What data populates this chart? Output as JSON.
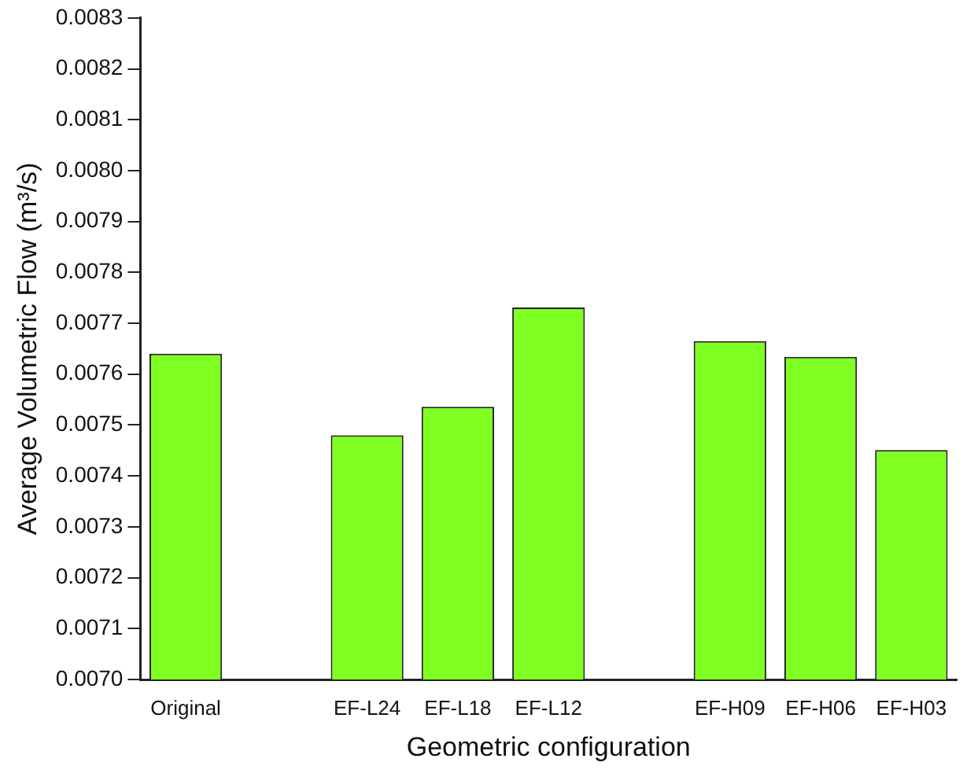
{
  "chart_data": {
    "type": "bar",
    "xlabel": "Geometric configuration",
    "ylabel": "Average Volumetric Flow (m³/s)",
    "categories": [
      "Original",
      null,
      "EF-L24",
      "EF-L18",
      "EF-L12",
      null,
      "EF-H09",
      "EF-H06",
      "EF-H03"
    ],
    "values": [
      0.00764,
      null,
      0.00748,
      0.007536,
      0.007731,
      null,
      0.007665,
      0.007634,
      0.007451
    ],
    "color": "#80ff22",
    "ylim": [
      0.007,
      0.0083
    ],
    "yticks": [
      {
        "value": 0.007,
        "label": "0.0070"
      },
      0.0071,
      0.0072,
      0.0073,
      0.0074,
      0.0075,
      0.0076,
      0.0077,
      0.0078,
      0.0079,
      {
        "value": 0.008,
        "label": "0.0080"
      },
      0.0081,
      0.0082,
      0.0083
    ],
    "grid": false,
    "legend": false
  }
}
